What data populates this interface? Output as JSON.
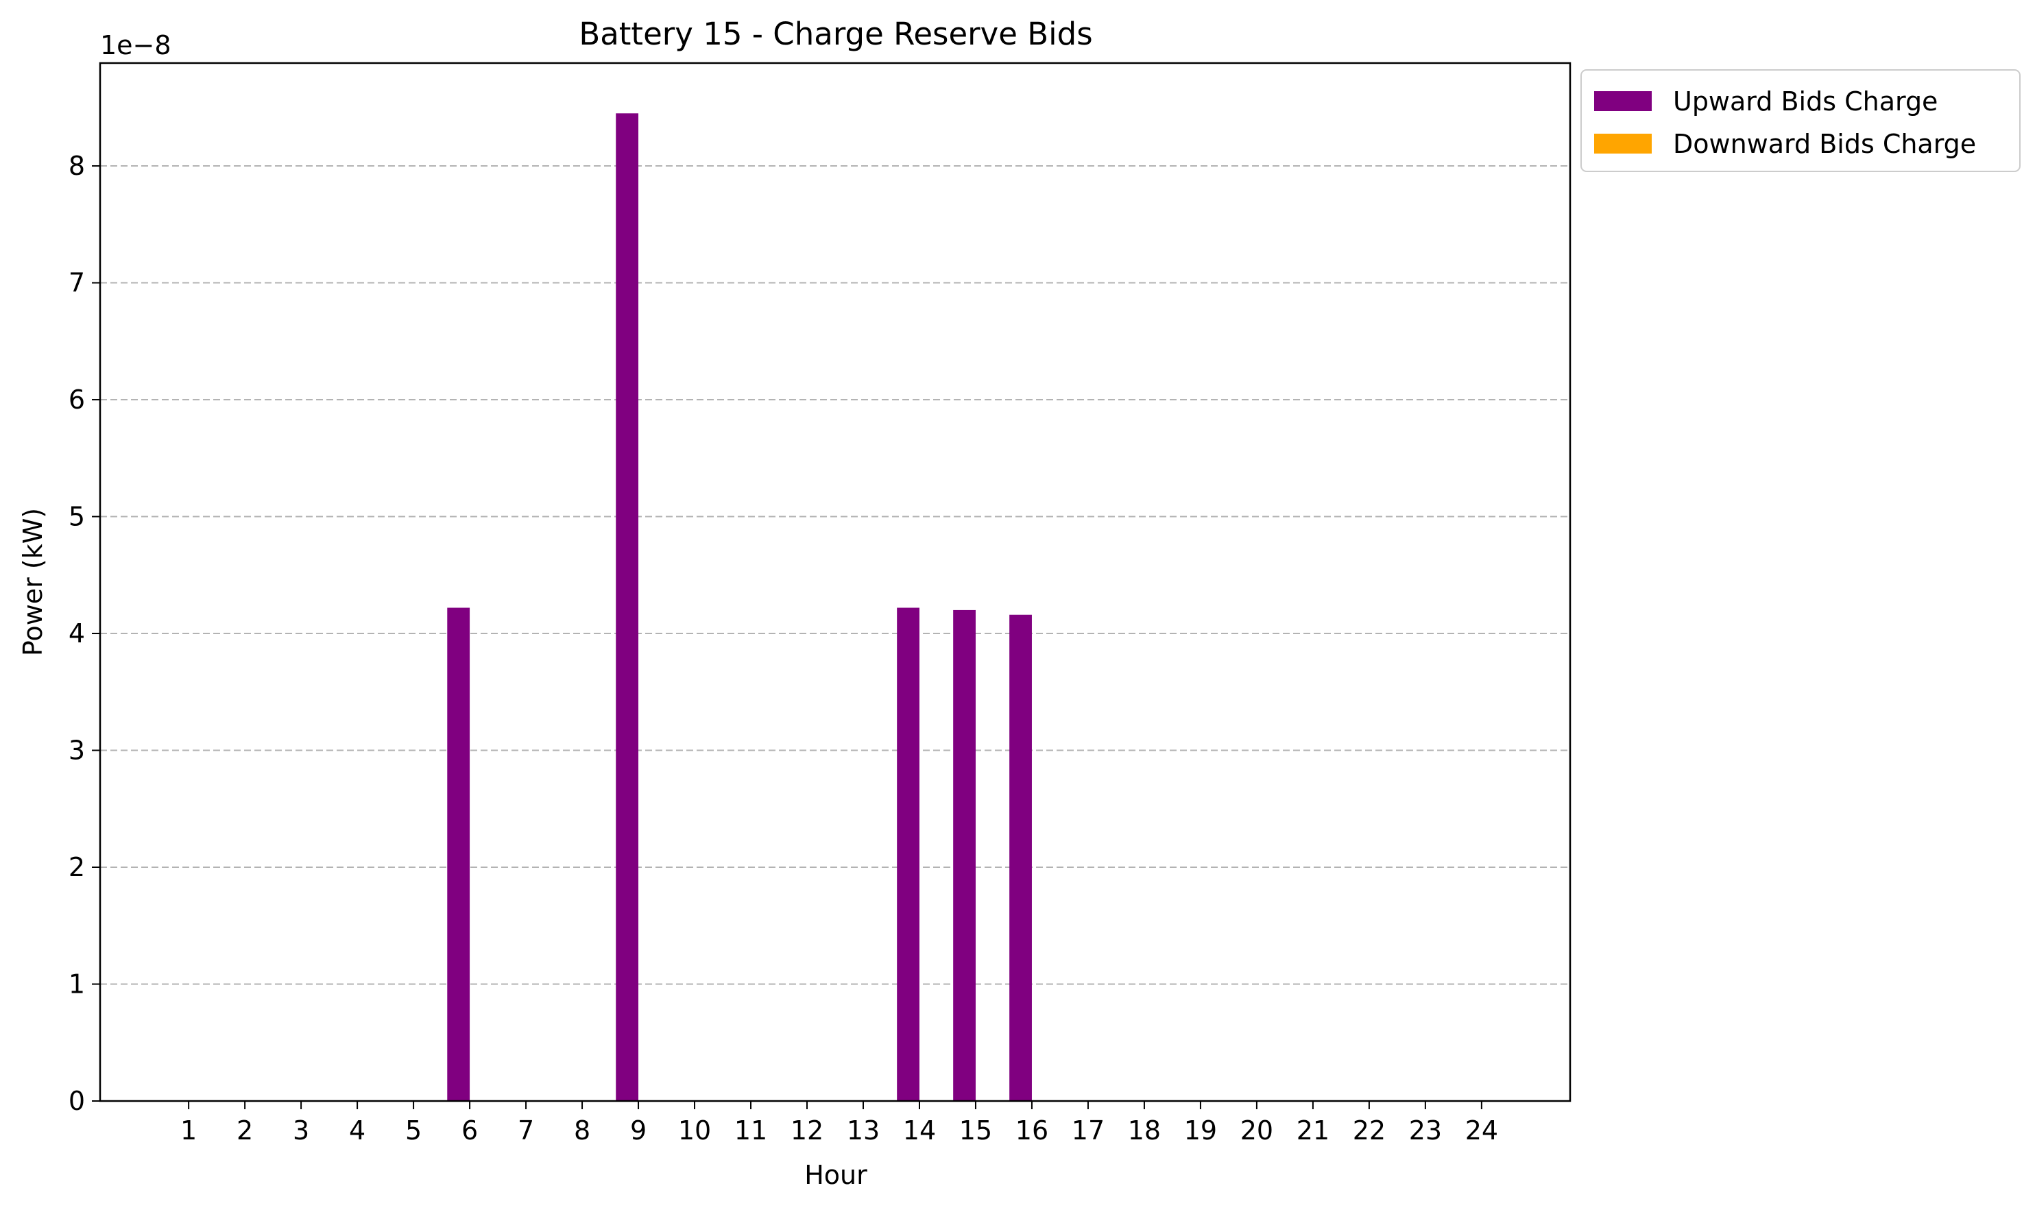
{
  "chart_data": {
    "type": "bar",
    "title": "Battery 15 - Charge Reserve Bids",
    "xlabel": "Hour",
    "ylabel": "Power (kW)",
    "y_scale_label": "1e−8",
    "categories": [
      "1",
      "2",
      "3",
      "4",
      "5",
      "6",
      "7",
      "8",
      "9",
      "10",
      "11",
      "12",
      "13",
      "14",
      "15",
      "16",
      "17",
      "18",
      "19",
      "20",
      "21",
      "22",
      "23",
      "24"
    ],
    "series": [
      {
        "name": "Upward Bids Charge",
        "color": "#800080",
        "values": [
          0,
          0,
          0,
          0,
          0,
          4.22,
          0,
          0,
          8.45,
          0,
          0,
          0,
          0,
          4.22,
          4.2,
          4.16,
          0,
          0,
          0,
          0,
          0,
          0,
          0,
          0
        ]
      },
      {
        "name": "Downward Bids Charge",
        "color": "#ffa500",
        "values": [
          0,
          0,
          0,
          0,
          0,
          0,
          0,
          0,
          0,
          0,
          0,
          0,
          0,
          0,
          0,
          0,
          0,
          0,
          0,
          0,
          0,
          0,
          0,
          0
        ]
      }
    ],
    "y_ticks": [
      0,
      1,
      2,
      3,
      4,
      5,
      6,
      7,
      8
    ],
    "ylim": [
      0,
      8.88
    ],
    "xlim": [
      -0.575,
      25.575
    ],
    "grid": "y-dashed",
    "legend_position": "outside-top-right"
  }
}
